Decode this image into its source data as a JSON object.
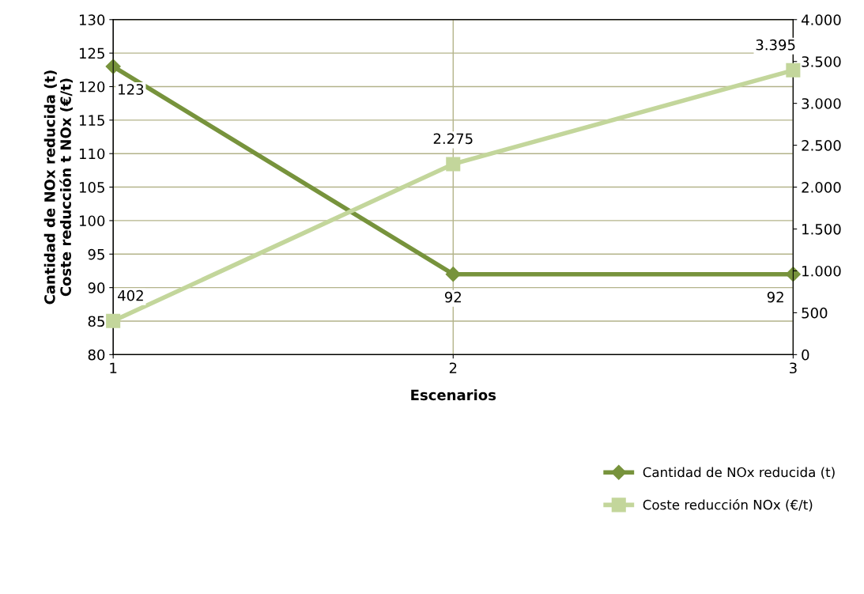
{
  "chart_data": {
    "type": "line",
    "xlabel": "Escenarios",
    "ylabel": "Cantidad de NOx reducida (t)\nCoste reducción t NOx (€/t)",
    "x": [
      1,
      2,
      3
    ],
    "xlim": [
      1,
      3
    ],
    "xticks": [
      1,
      2,
      3
    ],
    "ylim": [
      80,
      130
    ],
    "yticks": [
      80,
      85,
      90,
      95,
      100,
      105,
      110,
      115,
      120,
      125,
      130
    ],
    "y2lim": [
      0,
      4000
    ],
    "y2ticks": [
      0,
      {
        "value": 500,
        "label": "500"
      },
      {
        "value": 1000,
        "label": "1.000"
      },
      {
        "value": 1500,
        "label": "1.500"
      },
      {
        "value": 2000,
        "label": "2.000"
      },
      {
        "value": 2500,
        "label": "2.500"
      },
      {
        "value": 3000,
        "label": "3.000"
      },
      {
        "value": 3500,
        "label": "3.500"
      },
      {
        "value": 4000,
        "label": "4.000"
      }
    ],
    "grid": true,
    "legend": "bottom right",
    "series": [
      {
        "name": "Cantidad de NOx reducida (t)",
        "color": "#77933c",
        "marker": "diamond",
        "values": [
          123,
          92,
          92
        ],
        "value_labels": [
          "123",
          "92",
          "92"
        ]
      },
      {
        "name": "Coste reducción NOx (€/t)",
        "color": "#c3d69b",
        "marker": "square",
        "axis": "y2",
        "values": [
          402,
          2275,
          3395
        ],
        "value_labels": [
          "402",
          "2.275",
          "3.395"
        ]
      }
    ]
  }
}
